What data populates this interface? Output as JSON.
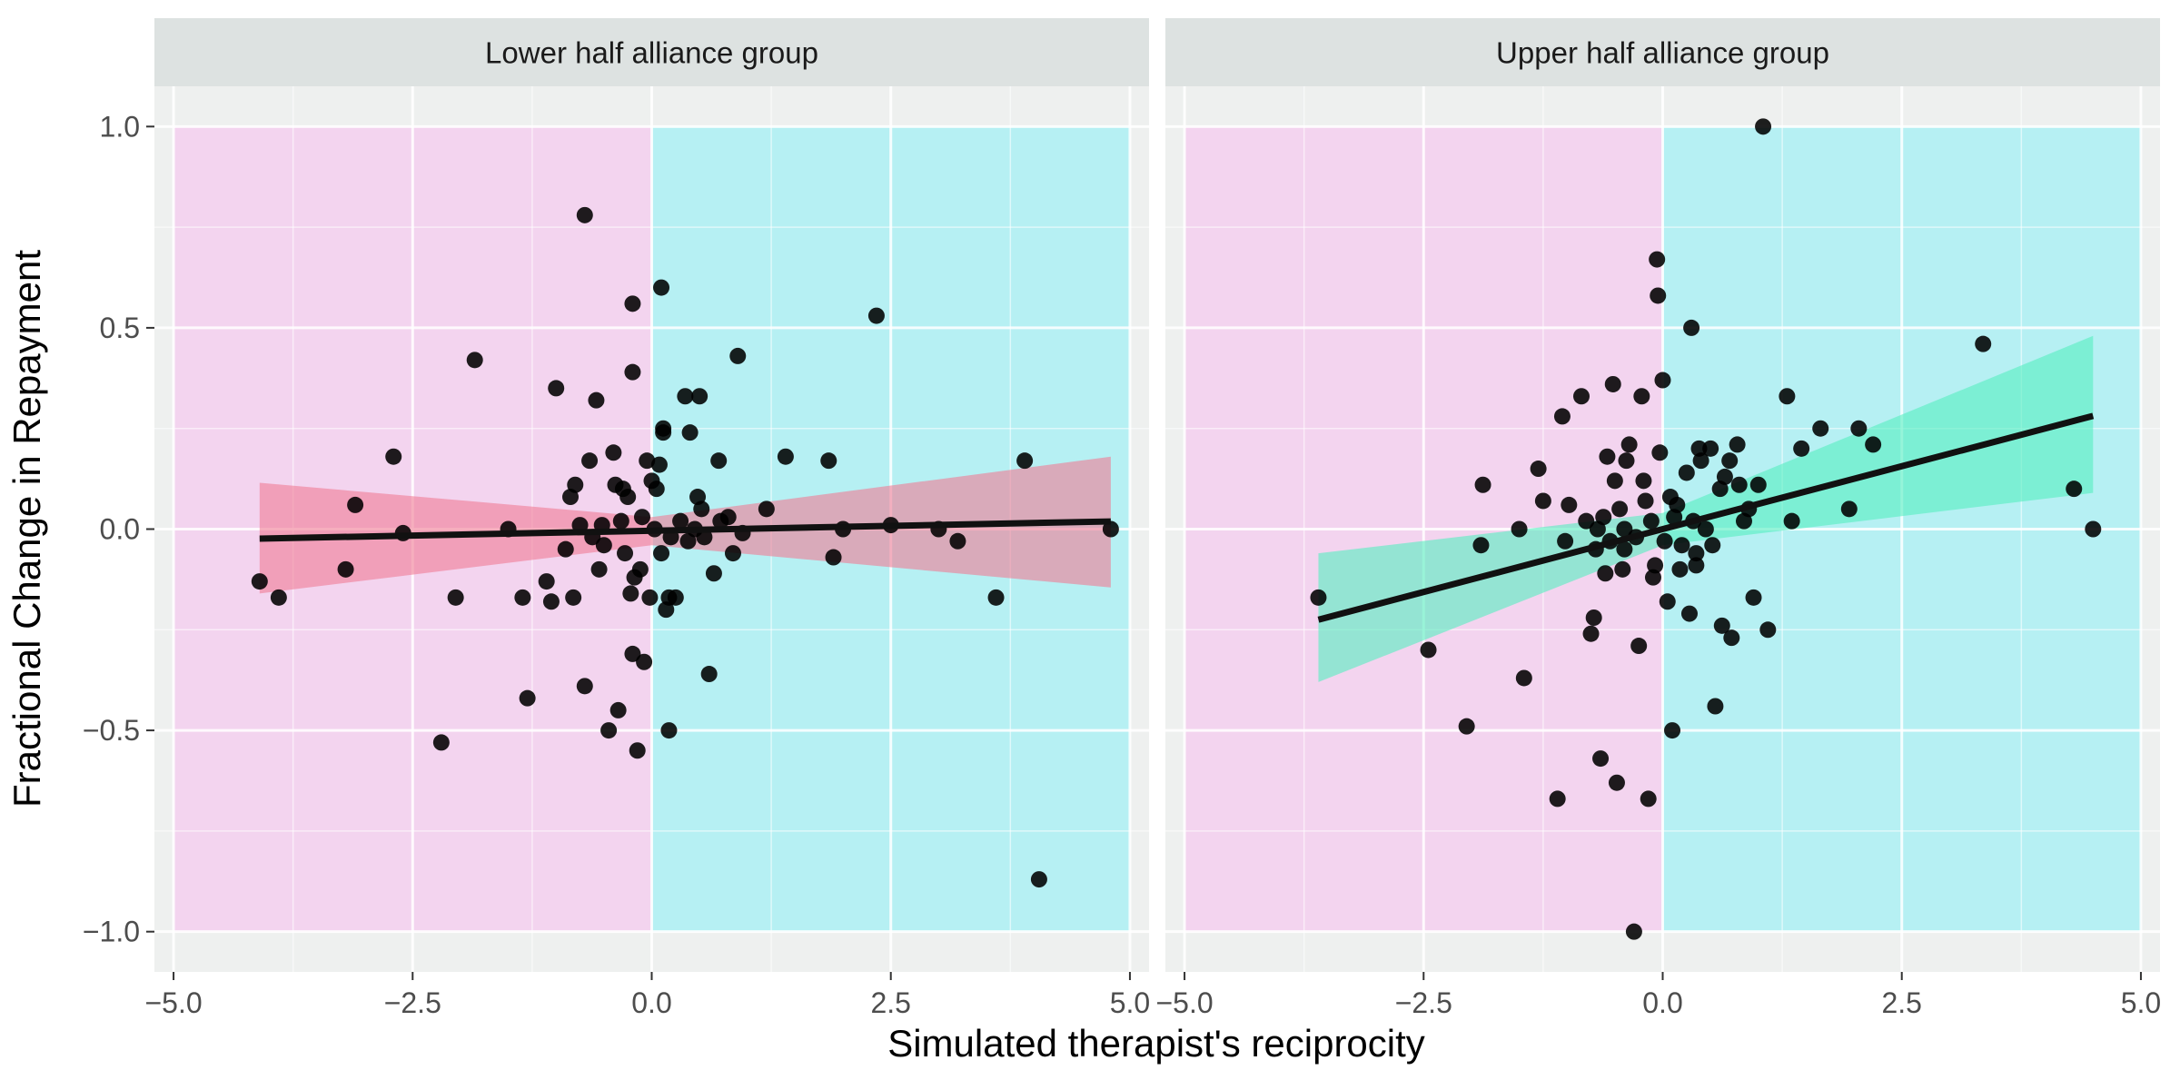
{
  "chart_data": {
    "type": "scatter",
    "xlabel": "Simulated therapist's reciprocity",
    "ylabel": "Fractional Change in Repayment",
    "xlim": [
      -5.2,
      5.2
    ],
    "ylim": [
      -1.1,
      1.1
    ],
    "x_ticks": [
      -5.0,
      -2.5,
      0.0,
      2.5,
      5.0
    ],
    "x_tick_labels": [
      "−5.0",
      "−2.5",
      "0.0",
      "2.5",
      "5.0"
    ],
    "y_ticks": [
      -1.0,
      -0.5,
      0.0,
      0.5,
      1.0
    ],
    "y_tick_labels": [
      "−1.0",
      "−0.5",
      "0.0",
      "0.5",
      "1.0"
    ],
    "grid": true,
    "background_regions": [
      {
        "x": [
          -5.0,
          0.0
        ],
        "y": [
          -1.0,
          1.0
        ],
        "color": "#f3d4ef"
      },
      {
        "x": [
          0.0,
          5.0
        ],
        "y": [
          -1.0,
          1.0
        ],
        "color": "#b6f0f3"
      }
    ],
    "colors": {
      "panel_bg": "#eef0ef",
      "strip_bg": "#dde2e1",
      "grid": "#ffffff",
      "points": "#000000",
      "fit_line": "#111111"
    },
    "panels": [
      {
        "title": "Lower half alliance group",
        "ribbon_color": "#f07c95",
        "fit": {
          "x_start": -4.1,
          "x_end": 4.8,
          "slope": 0.0048,
          "intercept": -0.004
        },
        "ribbon": [
          [
            -4.1,
            -0.16,
            0.115
          ],
          [
            0.0,
            -0.04,
            0.03
          ],
          [
            4.8,
            -0.145,
            0.18
          ]
        ],
        "points": [
          [
            -4.1,
            -0.13
          ],
          [
            -3.9,
            -0.17
          ],
          [
            -3.2,
            -0.1
          ],
          [
            -3.1,
            0.06
          ],
          [
            -2.7,
            0.18
          ],
          [
            -2.6,
            -0.01
          ],
          [
            -2.2,
            -0.53
          ],
          [
            -2.05,
            -0.17
          ],
          [
            -1.85,
            0.42
          ],
          [
            -1.5,
            0.0
          ],
          [
            -1.35,
            -0.17
          ],
          [
            -1.3,
            -0.42
          ],
          [
            -1.1,
            -0.13
          ],
          [
            -1.05,
            -0.18
          ],
          [
            -1.0,
            0.35
          ],
          [
            -0.9,
            -0.05
          ],
          [
            -0.85,
            0.08
          ],
          [
            -0.82,
            -0.17
          ],
          [
            -0.8,
            0.11
          ],
          [
            -0.75,
            0.01
          ],
          [
            -0.7,
            -0.39
          ],
          [
            -0.7,
            0.78
          ],
          [
            -0.65,
            0.17
          ],
          [
            -0.62,
            -0.02
          ],
          [
            -0.58,
            0.32
          ],
          [
            -0.55,
            -0.1
          ],
          [
            -0.52,
            0.01
          ],
          [
            -0.5,
            -0.04
          ],
          [
            -0.45,
            -0.5
          ],
          [
            -0.4,
            0.19
          ],
          [
            -0.38,
            0.11
          ],
          [
            -0.35,
            -0.45
          ],
          [
            -0.32,
            0.02
          ],
          [
            -0.3,
            0.1
          ],
          [
            -0.28,
            -0.06
          ],
          [
            -0.25,
            0.08
          ],
          [
            -0.22,
            -0.16
          ],
          [
            -0.2,
            0.39
          ],
          [
            -0.2,
            0.56
          ],
          [
            -0.2,
            -0.31
          ],
          [
            -0.18,
            -0.12
          ],
          [
            -0.15,
            -0.55
          ],
          [
            -0.12,
            -0.1
          ],
          [
            -0.1,
            0.03
          ],
          [
            -0.08,
            -0.33
          ],
          [
            -0.05,
            0.17
          ],
          [
            -0.02,
            -0.17
          ],
          [
            0.0,
            0.12
          ],
          [
            0.03,
            0.0
          ],
          [
            0.05,
            0.1
          ],
          [
            0.08,
            0.16
          ],
          [
            0.1,
            -0.06
          ],
          [
            0.1,
            0.6
          ],
          [
            0.12,
            0.25
          ],
          [
            0.12,
            0.24
          ],
          [
            0.15,
            -0.2
          ],
          [
            0.18,
            -0.17
          ],
          [
            0.18,
            -0.5
          ],
          [
            0.2,
            -0.02
          ],
          [
            0.25,
            -0.17
          ],
          [
            0.3,
            0.02
          ],
          [
            0.35,
            0.33
          ],
          [
            0.38,
            -0.03
          ],
          [
            0.4,
            0.24
          ],
          [
            0.45,
            0.0
          ],
          [
            0.48,
            0.08
          ],
          [
            0.5,
            0.33
          ],
          [
            0.52,
            0.05
          ],
          [
            0.55,
            -0.02
          ],
          [
            0.6,
            -0.36
          ],
          [
            0.65,
            -0.11
          ],
          [
            0.7,
            0.17
          ],
          [
            0.72,
            0.02
          ],
          [
            0.8,
            0.03
          ],
          [
            0.85,
            -0.06
          ],
          [
            0.9,
            0.43
          ],
          [
            0.95,
            -0.01
          ],
          [
            1.2,
            0.05
          ],
          [
            1.4,
            0.18
          ],
          [
            1.85,
            0.17
          ],
          [
            1.9,
            -0.07
          ],
          [
            2.0,
            0.0
          ],
          [
            2.35,
            0.53
          ],
          [
            2.5,
            0.01
          ],
          [
            3.0,
            0.0
          ],
          [
            3.2,
            -0.03
          ],
          [
            3.6,
            -0.17
          ],
          [
            3.9,
            0.17
          ],
          [
            4.05,
            -0.87
          ],
          [
            4.8,
            0.0
          ]
        ]
      },
      {
        "title": "Upper half alliance group",
        "ribbon_color": "#55eec0",
        "fit": {
          "x_start": -3.6,
          "x_end": 4.5,
          "slope": 0.0625,
          "intercept": 0.0
        },
        "ribbon": [
          [
            -3.6,
            -0.38,
            -0.06
          ],
          [
            0.0,
            -0.04,
            0.04
          ],
          [
            4.5,
            0.09,
            0.48
          ]
        ],
        "points": [
          [
            -3.6,
            -0.17
          ],
          [
            -2.45,
            -0.3
          ],
          [
            -2.05,
            -0.49
          ],
          [
            -1.9,
            -0.04
          ],
          [
            -1.88,
            0.11
          ],
          [
            -1.5,
            0.0
          ],
          [
            -1.45,
            -0.37
          ],
          [
            -1.3,
            0.15
          ],
          [
            -1.25,
            0.07
          ],
          [
            -1.1,
            -0.67
          ],
          [
            -1.05,
            0.28
          ],
          [
            -1.02,
            -0.03
          ],
          [
            -0.98,
            0.06
          ],
          [
            -0.85,
            0.33
          ],
          [
            -0.8,
            0.02
          ],
          [
            -0.75,
            -0.26
          ],
          [
            -0.72,
            -0.22
          ],
          [
            -0.7,
            -0.05
          ],
          [
            -0.68,
            0.0
          ],
          [
            -0.65,
            -0.57
          ],
          [
            -0.62,
            0.03
          ],
          [
            -0.6,
            -0.11
          ],
          [
            -0.58,
            0.18
          ],
          [
            -0.55,
            -0.03
          ],
          [
            -0.52,
            0.36
          ],
          [
            -0.5,
            0.12
          ],
          [
            -0.48,
            -0.63
          ],
          [
            -0.45,
            0.05
          ],
          [
            -0.42,
            -0.1
          ],
          [
            -0.4,
            0.0
          ],
          [
            -0.38,
            0.17
          ],
          [
            -0.35,
            0.21
          ],
          [
            -0.3,
            -1.0
          ],
          [
            -0.28,
            -0.02
          ],
          [
            -0.25,
            -0.29
          ],
          [
            -0.22,
            0.33
          ],
          [
            -0.2,
            0.12
          ],
          [
            -0.18,
            0.07
          ],
          [
            -0.15,
            -0.67
          ],
          [
            -0.12,
            0.02
          ],
          [
            -0.1,
            -0.12
          ],
          [
            -0.08,
            -0.09
          ],
          [
            -0.06,
            0.67
          ],
          [
            -0.05,
            0.58
          ],
          [
            -0.03,
            0.19
          ],
          [
            0.0,
            0.37
          ],
          [
            0.02,
            -0.03
          ],
          [
            0.05,
            -0.18
          ],
          [
            0.08,
            0.08
          ],
          [
            0.1,
            -0.5
          ],
          [
            0.12,
            0.03
          ],
          [
            0.15,
            0.06
          ],
          [
            0.18,
            -0.1
          ],
          [
            0.2,
            -0.04
          ],
          [
            0.25,
            0.14
          ],
          [
            0.28,
            -0.21
          ],
          [
            0.3,
            0.5
          ],
          [
            0.32,
            0.02
          ],
          [
            0.35,
            -0.09
          ],
          [
            0.38,
            0.2
          ],
          [
            0.4,
            0.17
          ],
          [
            0.45,
            0.0
          ],
          [
            0.5,
            0.2
          ],
          [
            0.52,
            -0.04
          ],
          [
            0.55,
            -0.44
          ],
          [
            0.6,
            0.1
          ],
          [
            0.62,
            -0.24
          ],
          [
            0.65,
            0.13
          ],
          [
            0.7,
            0.17
          ],
          [
            0.72,
            -0.27
          ],
          [
            0.78,
            0.21
          ],
          [
            0.8,
            0.11
          ],
          [
            0.85,
            0.02
          ],
          [
            0.9,
            0.05
          ],
          [
            0.95,
            -0.17
          ],
          [
            1.0,
            0.11
          ],
          [
            1.05,
            1.0
          ],
          [
            1.1,
            -0.25
          ],
          [
            1.3,
            0.33
          ],
          [
            1.35,
            0.02
          ],
          [
            1.45,
            0.2
          ],
          [
            1.65,
            0.25
          ],
          [
            1.95,
            0.05
          ],
          [
            2.05,
            0.25
          ],
          [
            2.2,
            0.21
          ],
          [
            3.35,
            0.46
          ],
          [
            4.3,
            0.1
          ],
          [
            4.5,
            0.0
          ],
          [
            -0.4,
            -0.05
          ],
          [
            0.35,
            -0.06
          ]
        ]
      }
    ]
  }
}
